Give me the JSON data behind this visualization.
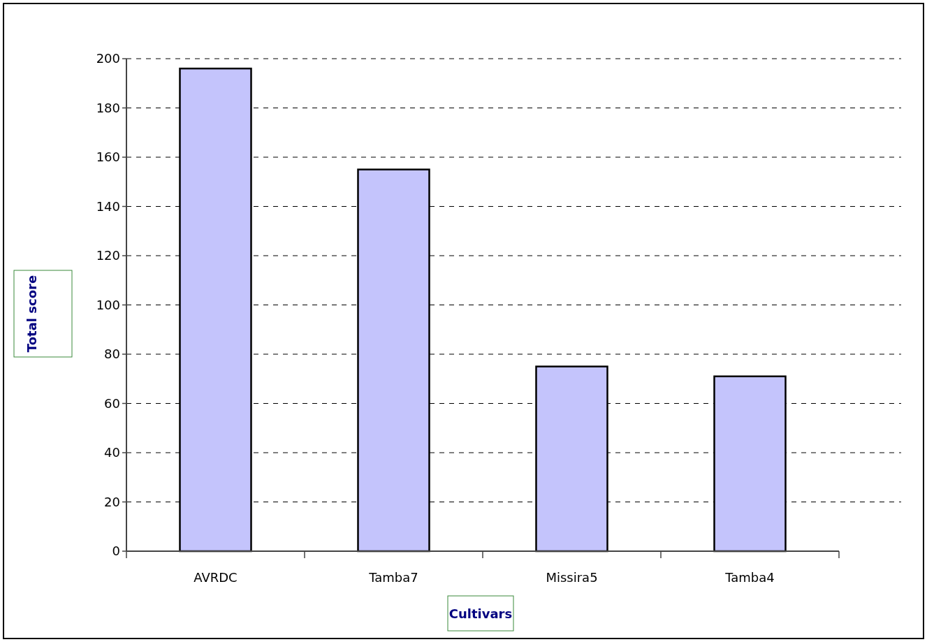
{
  "chart_data": {
    "type": "bar",
    "xlabel": "Cultivars",
    "ylabel": "Total score",
    "categories": [
      "AVRDC",
      "Tamba7",
      "Missira5",
      "Tamba4"
    ],
    "values": [
      196,
      155,
      75,
      71
    ],
    "color": "#c4c4fc",
    "ylim": [
      0,
      200
    ],
    "yticks": [
      0,
      20,
      40,
      60,
      80,
      100,
      120,
      140,
      160,
      180,
      200
    ],
    "grid": "y"
  }
}
